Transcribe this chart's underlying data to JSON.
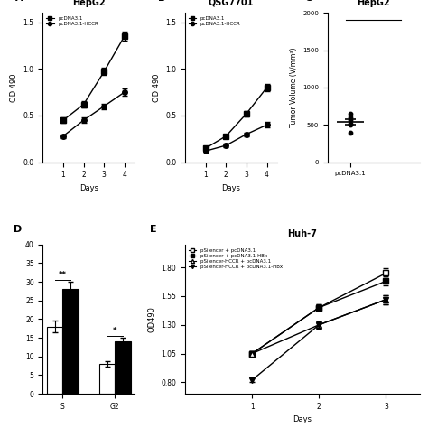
{
  "panel_A": {
    "title": "HepG2",
    "xlabel": "Days",
    "ylabel": "OD 490",
    "legend": [
      "pcDNA3.1",
      "pcDNA3.1-HCCR"
    ],
    "days": [
      1,
      2,
      3,
      4
    ],
    "line1": [
      0.45,
      0.62,
      0.97,
      1.35
    ],
    "line1_err": [
      0.03,
      0.03,
      0.04,
      0.05
    ],
    "line2": [
      0.28,
      0.45,
      0.6,
      0.75
    ],
    "line2_err": [
      0.02,
      0.03,
      0.03,
      0.04
    ],
    "ylim": [
      0.0,
      1.6
    ],
    "xlim": [
      0,
      4.5
    ]
  },
  "panel_B": {
    "title": "QSG7701",
    "xlabel": "Days",
    "ylabel": "OD 490",
    "legend": [
      "pcDNA3.1",
      "pcDNA3.1-HCCR"
    ],
    "days": [
      1,
      2,
      3,
      4
    ],
    "line1": [
      0.15,
      0.28,
      0.52,
      0.8
    ],
    "line1_err": [
      0.02,
      0.02,
      0.03,
      0.04
    ],
    "line2": [
      0.12,
      0.18,
      0.3,
      0.4
    ],
    "line2_err": [
      0.01,
      0.02,
      0.02,
      0.03
    ],
    "ylim": [
      0.0,
      1.6
    ],
    "xlim": [
      0,
      4.5
    ]
  },
  "panel_C": {
    "title": "HepG2",
    "xlabel": "pcDNA3.1",
    "ylabel": "Tumor Volume (V/mm³)",
    "dots1": [
      400,
      500,
      520,
      560,
      600,
      650
    ],
    "mean1": 540,
    "sem1": 40,
    "xlim": [
      -0.5,
      1.5
    ],
    "ylim": [
      0,
      2000
    ]
  },
  "panel_D": {
    "title": "",
    "xlabel": "",
    "ylabel": "",
    "categories": [
      "S",
      "G2"
    ],
    "bar1": [
      18,
      8
    ],
    "bar2": [
      28,
      14
    ],
    "bar1_err": [
      1.5,
      0.8
    ],
    "bar2_err": [
      2.0,
      1.0
    ],
    "ylim": [
      0,
      40
    ],
    "sig_S": "**",
    "sig_G2": "*"
  },
  "panel_E": {
    "title": "Huh-7",
    "xlabel": "Days",
    "ylabel": "OD490",
    "legend": [
      "pSilencer + pcDNA3.1",
      "pSilencer + pcDNA3.1-HBx",
      "pSilencer-HCCR + pcDNA3.1",
      "pSilencer-HCCR + pcDNA3.1-HBx"
    ],
    "days": [
      1,
      2,
      3
    ],
    "line1": [
      1.05,
      1.45,
      1.75
    ],
    "line1_err": [
      0.02,
      0.03,
      0.04
    ],
    "line2": [
      1.05,
      1.45,
      1.68
    ],
    "line2_err": [
      0.02,
      0.03,
      0.04
    ],
    "line3": [
      1.05,
      1.3,
      1.52
    ],
    "line3_err": [
      0.02,
      0.03,
      0.04
    ],
    "line4": [
      0.82,
      1.3,
      1.52
    ],
    "line4_err": [
      0.02,
      0.03,
      0.04
    ],
    "ylim": [
      0.7,
      2.0
    ],
    "xlim": [
      0,
      3.5
    ],
    "yticks": [
      0.8,
      1.05,
      1.3,
      1.55,
      1.8
    ]
  }
}
